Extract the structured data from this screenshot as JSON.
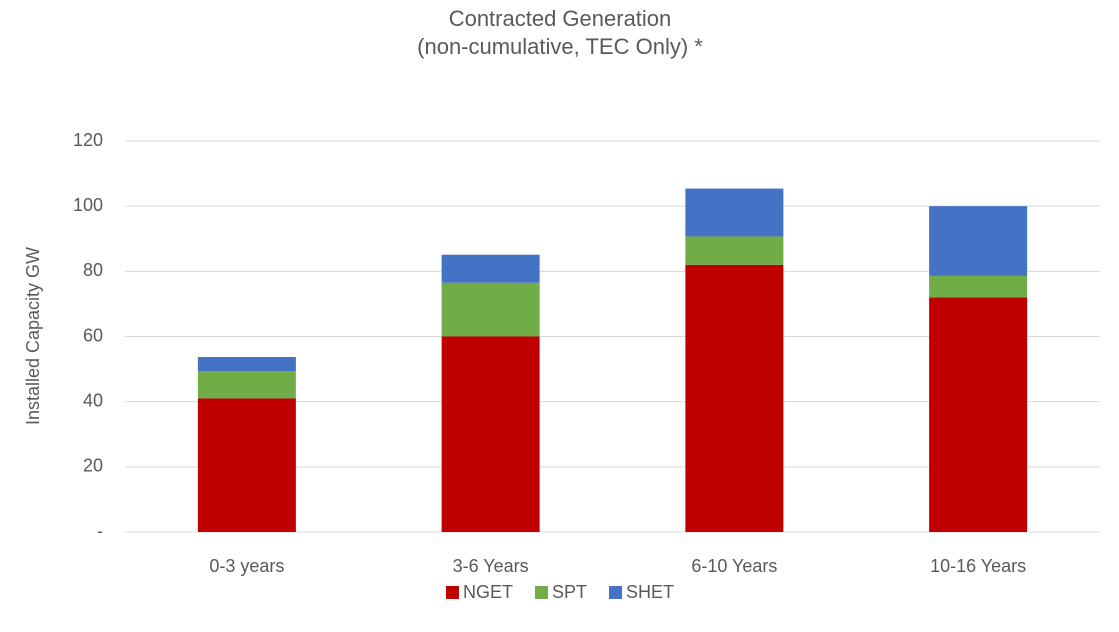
{
  "chart_data": {
    "type": "stacked_bar",
    "title": "Contracted Generation",
    "subtitle": "(non-cumulative, TEC Only) *",
    "y_label": "Installed Capacity GW",
    "categories": [
      "0-3 years",
      "3-6 Years",
      "6-10 Years",
      "10-16 Years"
    ],
    "series": [
      {
        "name": "NGET",
        "color": "#c00000",
        "values": [
          41,
          60,
          82,
          72
        ]
      },
      {
        "name": "SPT",
        "color": "#70ad47",
        "values": [
          8.4,
          16.5,
          8.7,
          6.6
        ]
      },
      {
        "name": "SHET",
        "color": "#4472c4",
        "values": [
          4.3,
          8.6,
          14.7,
          21.4
        ]
      }
    ],
    "ylim": [
      0,
      120
    ],
    "yticks": [
      {
        "value": 0,
        "label": "-"
      },
      20,
      40,
      60,
      80,
      100,
      120
    ],
    "grid": true,
    "legend": "bottom"
  }
}
